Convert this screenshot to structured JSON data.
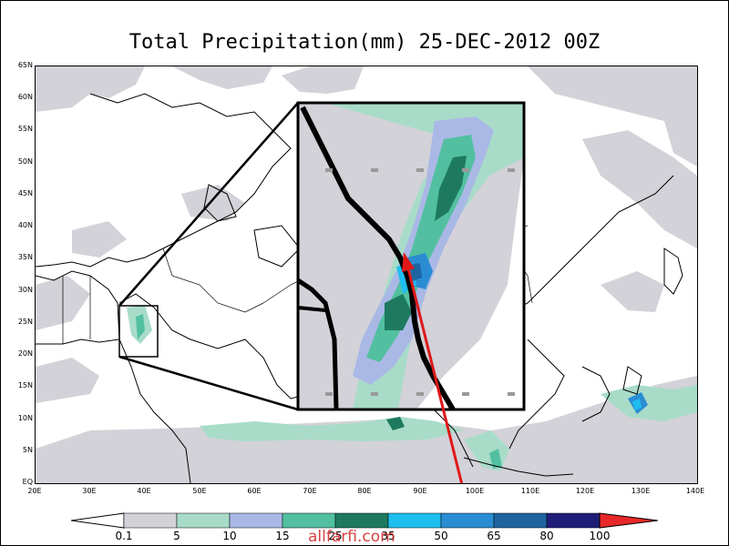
{
  "title": "Total Precipitation(mm) 25-DEC-2012 00Z",
  "latitude_labels": [
    "65N",
    "60N",
    "55N",
    "50N",
    "45N",
    "40N",
    "35N",
    "30N",
    "25N",
    "20N",
    "15N",
    "10N",
    "5N",
    "EQ"
  ],
  "longitude_labels": [
    "20E",
    "30E",
    "40E",
    "50E",
    "60E",
    "70E",
    "80E",
    "90E",
    "100E",
    "110E",
    "120E",
    "130E",
    "140E"
  ],
  "colorbar": {
    "labels": [
      "0.1",
      "5",
      "10",
      "15",
      "25",
      "35",
      "50",
      "65",
      "80",
      "100"
    ],
    "colors": [
      "#ffffff",
      "#d2d2d8",
      "#a8dcc8",
      "#aab8e6",
      "#52c0a0",
      "#1e7a5e",
      "#1ebeee",
      "#2a8cd2",
      "#1e64a0",
      "#1e1e78",
      "#e82828"
    ]
  },
  "watermark": "allfarfi.com",
  "colors": {
    "arrow": "#e01818",
    "frame": "#000000"
  }
}
